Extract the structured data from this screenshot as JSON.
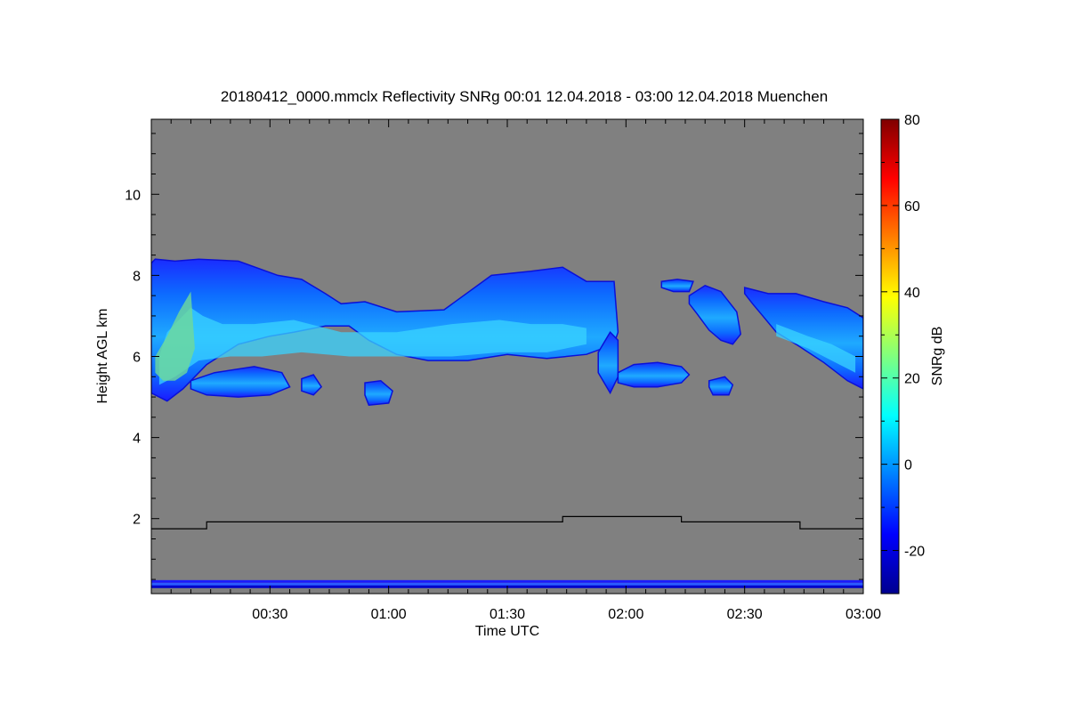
{
  "chart_data": {
    "type": "heatmap",
    "title": "20180412_0000.mmclx Reflectivity SNRg   00:01 12.04.2018 - 03:00 12.04.2018 Muenchen",
    "xlabel": "Time UTC",
    "ylabel": "Height AGL km",
    "colorbar_label": "SNRg dB",
    "background_color": "#808080",
    "colormap": "jet",
    "x_unit": "minutes UTC",
    "xlim": [
      0,
      180
    ],
    "ylim": [
      0.15,
      11.85
    ],
    "clim": [
      -30,
      80
    ],
    "x_ticks": [
      {
        "value": 30,
        "label": "00:30"
      },
      {
        "value": 60,
        "label": "01:00"
      },
      {
        "value": 90,
        "label": "01:30"
      },
      {
        "value": 120,
        "label": "02:00"
      },
      {
        "value": 150,
        "label": "02:30"
      },
      {
        "value": 180,
        "label": "03:00"
      }
    ],
    "y_ticks": [
      {
        "value": 2,
        "label": "2"
      },
      {
        "value": 4,
        "label": "4"
      },
      {
        "value": 6,
        "label": "6"
      },
      {
        "value": 8,
        "label": "8"
      },
      {
        "value": 10,
        "label": "10"
      }
    ],
    "colorbar_ticks": [
      {
        "value": -20,
        "label": "-20"
      },
      {
        "value": 0,
        "label": "0"
      },
      {
        "value": 20,
        "label": "20"
      },
      {
        "value": 40,
        "label": "40"
      },
      {
        "value": 60,
        "label": "60"
      },
      {
        "value": 80,
        "label": "80"
      }
    ],
    "step_line": {
      "name": "",
      "color": "#000000",
      "points": [
        [
          0,
          1.75
        ],
        [
          14,
          1.75
        ],
        [
          14,
          1.92
        ],
        [
          104,
          1.92
        ],
        [
          104,
          2.05
        ],
        [
          134,
          2.05
        ],
        [
          134,
          1.92
        ],
        [
          164,
          1.92
        ],
        [
          164,
          1.75
        ],
        [
          180,
          1.75
        ]
      ]
    },
    "echo_regions": [
      {
        "name": "main-cloud",
        "x": [
          0,
          1,
          6,
          12,
          22,
          32,
          38,
          44,
          48,
          54,
          62,
          74,
          86,
          96,
          104,
          110,
          117,
          118,
          117,
          110,
          100,
          90,
          80,
          70,
          62,
          55,
          50,
          44,
          36,
          30,
          22,
          14,
          8,
          4,
          1,
          0
        ],
        "y": [
          8.3,
          8.4,
          8.35,
          8.4,
          8.35,
          8.0,
          7.9,
          7.55,
          7.3,
          7.35,
          7.1,
          7.15,
          8.0,
          8.1,
          8.2,
          7.85,
          7.85,
          6.6,
          6.3,
          6.05,
          5.95,
          6.05,
          5.9,
          5.9,
          6.05,
          6.4,
          6.75,
          6.75,
          6.6,
          6.5,
          6.3,
          5.8,
          5.2,
          4.9,
          5.05,
          5.1
        ],
        "core_x": [
          2,
          4,
          7,
          10,
          13,
          18,
          26,
          36,
          48,
          62,
          76,
          88,
          96,
          104,
          110,
          110,
          100,
          88,
          76,
          62,
          50,
          38,
          28,
          20,
          12,
          6,
          2
        ],
        "core_y": [
          6.0,
          6.6,
          6.9,
          7.2,
          7.0,
          6.8,
          6.8,
          6.9,
          6.6,
          6.6,
          6.8,
          6.9,
          6.8,
          6.8,
          6.7,
          6.3,
          6.1,
          6.1,
          6.0,
          6.0,
          6.0,
          6.1,
          6.0,
          6.0,
          5.9,
          5.5,
          5.3
        ]
      },
      {
        "name": "lower-patch-1",
        "x": [
          10,
          16,
          26,
          33,
          35,
          30,
          22,
          14,
          10
        ],
        "y": [
          5.4,
          5.6,
          5.75,
          5.6,
          5.25,
          5.05,
          5.0,
          5.05,
          5.2
        ],
        "core_x": [],
        "core_y": []
      },
      {
        "name": "lower-patch-2",
        "x": [
          38,
          41,
          43,
          41,
          38
        ],
        "y": [
          5.45,
          5.55,
          5.25,
          5.05,
          5.15
        ],
        "core_x": [],
        "core_y": []
      },
      {
        "name": "lower-patch-3",
        "x": [
          54,
          58,
          61,
          60,
          55,
          54
        ],
        "y": [
          5.35,
          5.4,
          5.15,
          4.85,
          4.8,
          5.05
        ],
        "core_x": [],
        "core_y": []
      },
      {
        "name": "fallstreaks",
        "x": [
          113,
          116,
          118,
          118,
          116,
          113
        ],
        "y": [
          6.1,
          6.6,
          6.4,
          5.5,
          5.1,
          5.6
        ],
        "core_x": [],
        "core_y": []
      },
      {
        "name": "patch-near-2am",
        "x": [
          118,
          122,
          128,
          134,
          136,
          134,
          128,
          122,
          118
        ],
        "y": [
          5.6,
          5.8,
          5.85,
          5.75,
          5.55,
          5.35,
          5.25,
          5.25,
          5.35
        ],
        "core_x": [],
        "core_y": []
      },
      {
        "name": "cell-0207",
        "x": [
          129,
          133,
          137,
          136,
          132,
          129
        ],
        "y": [
          7.85,
          7.9,
          7.85,
          7.6,
          7.6,
          7.7
        ],
        "core_x": [],
        "core_y": []
      },
      {
        "name": "cell-0215",
        "x": [
          136,
          140,
          144,
          148,
          149,
          147,
          144,
          141,
          138,
          136
        ],
        "y": [
          7.5,
          7.75,
          7.6,
          7.1,
          6.55,
          6.3,
          6.4,
          6.65,
          7.05,
          7.3
        ],
        "core_x": [],
        "core_y": []
      },
      {
        "name": "small-0225",
        "x": [
          141,
          145,
          147,
          146,
          142,
          141
        ],
        "y": [
          5.4,
          5.5,
          5.3,
          5.05,
          5.05,
          5.25
        ],
        "core_x": [],
        "core_y": []
      },
      {
        "name": "right-cloud",
        "x": [
          150,
          156,
          163,
          170,
          176,
          180,
          180,
          176,
          170,
          163,
          158,
          155,
          152,
          150
        ],
        "y": [
          7.7,
          7.55,
          7.55,
          7.35,
          7.2,
          6.95,
          5.2,
          5.4,
          5.85,
          6.3,
          6.6,
          6.95,
          7.3,
          7.55
        ],
        "core_x": [
          158,
          166,
          172,
          178,
          178,
          172,
          166,
          158
        ],
        "core_y": [
          6.8,
          6.5,
          6.3,
          6.0,
          5.6,
          5.9,
          6.2,
          6.5
        ]
      }
    ],
    "ground_clutter_layers": [
      {
        "y": 0.45,
        "color": "#1a1aff"
      },
      {
        "y": 0.38,
        "color": "#2a5cff"
      },
      {
        "y": 0.32,
        "color": "#0000cc"
      }
    ]
  }
}
